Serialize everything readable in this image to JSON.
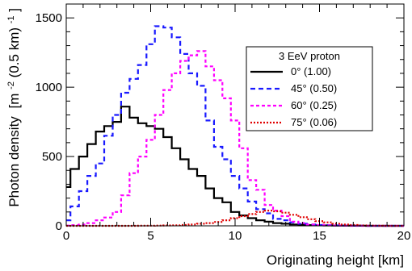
{
  "chart_data": {
    "type": "line",
    "title": "",
    "xlabel": "Originating height [km]",
    "ylabel_main": "Photon density",
    "ylabel_unit_pre": "[m",
    "ylabel_unit_exp": "-2",
    "ylabel_unit_post": " (0.5 km)",
    "ylabel_unit_exp2": "-1",
    "ylabel_unit_close": "]",
    "xlim": [
      0,
      20
    ],
    "ylim": [
      0,
      1600
    ],
    "xticks": [
      "0",
      "5",
      "10",
      "15",
      "20"
    ],
    "yticks": [
      "0",
      "500",
      "1000",
      "1500"
    ],
    "bin_width": 0.5,
    "bin_start": -0.25,
    "legend": {
      "title": "3 EeV proton",
      "placement": "top-right"
    },
    "series": [
      {
        "name": "0° (1.00)",
        "color": "#000000",
        "dash": "",
        "values": [
          280,
          410,
          500,
          590,
          680,
          720,
          750,
          860,
          780,
          740,
          720,
          700,
          640,
          560,
          480,
          410,
          360,
          270,
          200,
          170,
          100,
          75,
          55,
          40,
          30,
          20,
          15,
          10,
          8,
          5,
          4,
          3,
          2,
          2,
          1,
          1,
          0,
          0,
          0,
          0,
          0,
          0
        ]
      },
      {
        "name": "45° (0.50)",
        "color": "#1a1aff",
        "dash": "6,4",
        "values": [
          40,
          140,
          250,
          360,
          450,
          650,
          800,
          960,
          1060,
          1160,
          1310,
          1440,
          1430,
          1360,
          1240,
          1100,
          1010,
          760,
          570,
          480,
          360,
          270,
          175,
          120,
          90,
          50,
          40,
          25,
          15,
          10,
          6,
          5,
          3,
          2,
          1,
          1,
          0,
          0,
          0,
          0,
          0,
          0
        ]
      },
      {
        "name": "60° (0.25)",
        "color": "#ff00ff",
        "dash": "4,3",
        "values": [
          2,
          5,
          10,
          20,
          40,
          60,
          100,
          220,
          380,
          500,
          620,
          800,
          980,
          1100,
          1190,
          1230,
          1260,
          1150,
          1050,
          920,
          760,
          560,
          330,
          260,
          150,
          110,
          70,
          30,
          20,
          10,
          6,
          4,
          2,
          1,
          0,
          0,
          0,
          0,
          0,
          0,
          0,
          0
        ]
      },
      {
        "name": "75° (0.06)",
        "color": "#e00000",
        "dash": "2,2",
        "values": [
          0,
          0,
          0,
          0,
          0,
          0,
          0,
          0,
          0,
          1,
          1,
          2,
          3,
          4,
          6,
          10,
          15,
          20,
          28,
          40,
          55,
          70,
          85,
          100,
          110,
          105,
          95,
          80,
          62,
          48,
          34,
          25,
          16,
          10,
          6,
          3,
          2,
          1,
          0,
          0,
          0,
          0
        ]
      }
    ]
  }
}
